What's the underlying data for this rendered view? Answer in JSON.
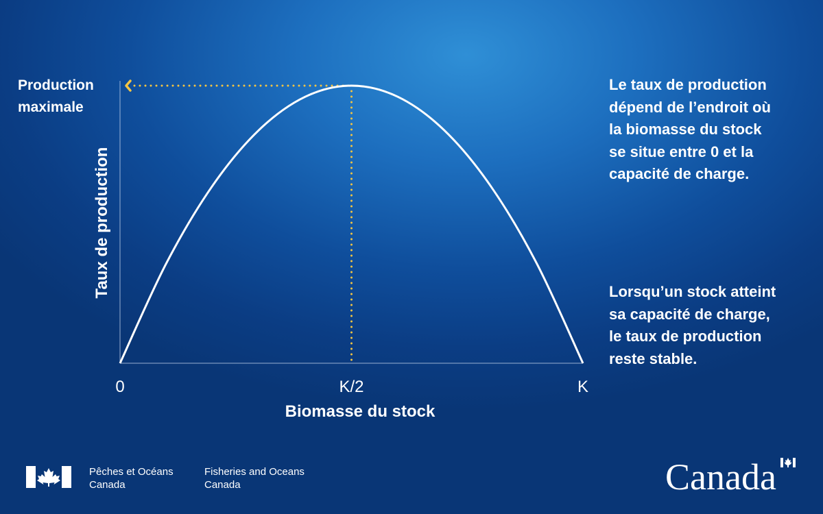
{
  "chart_data": {
    "type": "line",
    "title": "",
    "xlabel": "Biomasse du stock",
    "ylabel": "Taux de production",
    "x_ticks": [
      "0",
      "K/2",
      "K"
    ],
    "x_tick_values": [
      0,
      0.5,
      1
    ],
    "xlim": [
      0,
      1
    ],
    "ylim": [
      0,
      1
    ],
    "grid": false,
    "series": [
      {
        "x": [
          0,
          0.1,
          0.2,
          0.3,
          0.4,
          0.5,
          0.6,
          0.7,
          0.8,
          0.9,
          1
        ],
        "y": [
          0,
          0.36,
          0.64,
          0.84,
          0.96,
          1,
          0.96,
          0.84,
          0.64,
          0.36,
          0
        ]
      }
    ],
    "annotations": [
      {
        "text": [
          "Production",
          "maximale"
        ],
        "marks_x": 0.5,
        "marks_y": 1
      }
    ],
    "colors": {
      "curve": "#ffffff",
      "guide": "#f5c542",
      "axis": "#c9d8ee"
    }
  },
  "description": {
    "paragraph_1": [
      "Le taux de production",
      "dépend de l’endroit où",
      "la biomasse du stock",
      "se situe entre 0 et la",
      "capacité de charge."
    ],
    "paragraph_2": [
      "Lorsqu’un stock atteint",
      "sa capacité de charge,",
      "le taux de production",
      "reste stable."
    ]
  },
  "footer": {
    "department_fr": [
      "Pêches et Océans",
      "Canada"
    ],
    "department_en": [
      "Fisheries and Oceans",
      "Canada"
    ],
    "wordmark": "Canada",
    "logo_icon": "canada-flag-icon"
  }
}
